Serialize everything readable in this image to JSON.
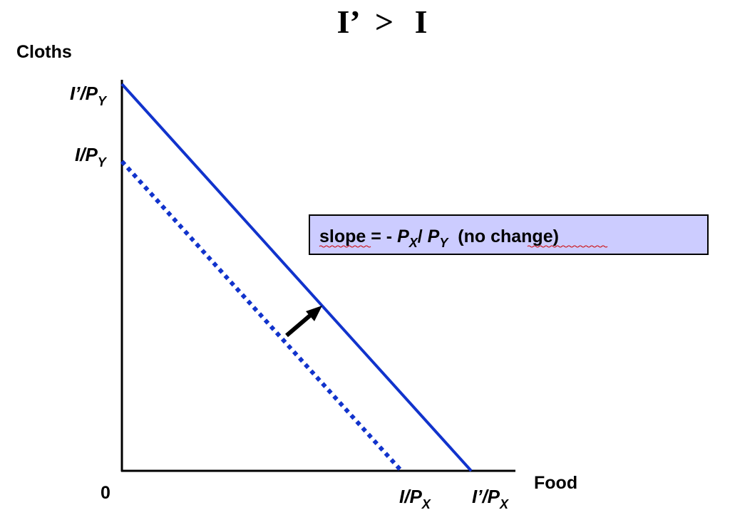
{
  "title": {
    "left": "I’",
    "operator": ">",
    "right": "I"
  },
  "axes": {
    "y_title": "Cloths",
    "x_title": "Food",
    "origin": "0"
  },
  "ticks": {
    "y_new_main": "I’/P",
    "y_new_sub": "Y",
    "y_old_main": "I/P",
    "y_old_sub": "Y",
    "x_old_main": "I/P",
    "x_old_sub": "X",
    "x_new_main": "I’/P",
    "x_new_sub": "X"
  },
  "callout": {
    "prefix": "slope = - ",
    "num_main": "P",
    "num_sub": "X",
    "slash": "/ ",
    "den_main": "P",
    "den_sub": "Y",
    "suffix": "  (no change)"
  },
  "colors": {
    "budget_line": "#1133cc",
    "callout_fill": "#ccccff",
    "arrow": "#000000"
  },
  "chart_data": {
    "type": "line",
    "series": [
      {
        "line_style": "dotted",
        "x": [
          0,
          0.8
        ],
        "y": [
          0.8,
          0
        ]
      },
      {
        "line_style": "solid",
        "x": [
          0,
          1.0
        ],
        "y": [
          1.0,
          0
        ]
      }
    ],
    "shift_arrow": "outward",
    "grid": false
  }
}
